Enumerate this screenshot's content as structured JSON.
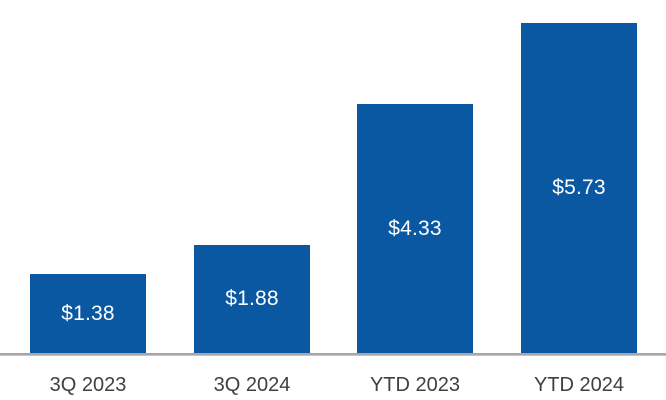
{
  "chart_data": {
    "type": "bar",
    "title": "",
    "xlabel": "",
    "ylabel": "",
    "categories": [
      "3Q 2023",
      "3Q 2024",
      "YTD 2023",
      "YTD 2024"
    ],
    "values": [
      1.38,
      1.88,
      4.33,
      5.73
    ],
    "data_labels": [
      "$1.38",
      "$1.88",
      "$4.33",
      "$5.73"
    ],
    "ylim": [
      0,
      6.2
    ],
    "grid": false,
    "legend": false,
    "y_axis_visible": false,
    "colors": {
      "bar_fill": "#0a58a1",
      "data_label_text": "#ffffff",
      "axis_line": "#a7a7a7",
      "tick_label_text": "#404040",
      "background": "#ffffff"
    }
  }
}
